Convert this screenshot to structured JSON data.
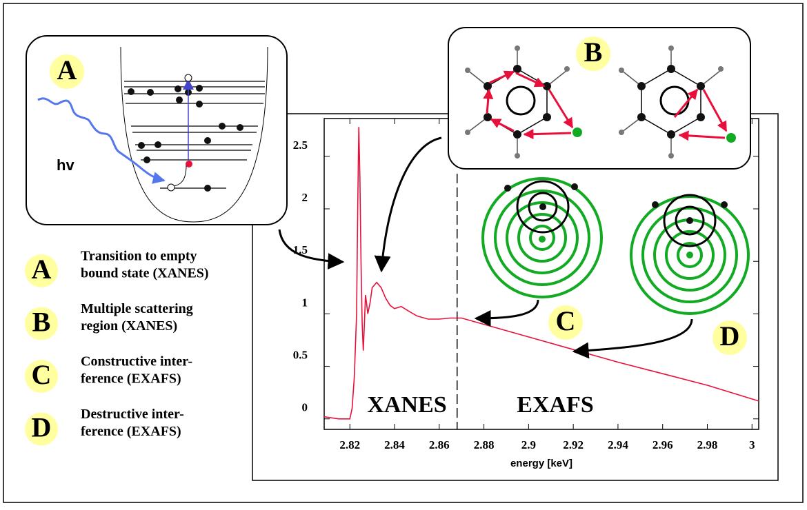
{
  "chart_data": {
    "type": "line",
    "xlabel": "energy [keV]",
    "color": "#e8103a",
    "x": [
      2.8085,
      2.815,
      2.82,
      2.821,
      2.822,
      2.823,
      2.8235,
      2.824,
      2.8245,
      2.825,
      2.8255,
      2.826,
      2.8265,
      2.827,
      2.8275,
      2.828,
      2.829,
      2.83,
      2.832,
      2.834,
      2.836,
      2.838,
      2.84,
      2.843,
      2.846,
      2.85,
      2.855,
      2.86,
      2.865,
      2.87,
      2.88,
      2.9,
      2.92,
      2.94,
      2.96,
      2.98,
      3.003
    ],
    "values": [
      0.02,
      0,
      0,
      0.1,
      0.4,
      1,
      2,
      2.78,
      2.3,
      1.5,
      0.9,
      0.65,
      0.9,
      1.18,
      1.1,
      1,
      1.1,
      1.25,
      1.3,
      1.25,
      1.15,
      1.08,
      1.05,
      1.07,
      1.03,
      0.98,
      0.95,
      0.95,
      0.96,
      0.96,
      0.9,
      0.78,
      0.66,
      0.54,
      0.43,
      0.32,
      0.17
    ],
    "xlim": [
      2.8085,
      3.003
    ],
    "ylim": [
      -0.1,
      2.86
    ],
    "xticks": [
      2.82,
      2.84,
      2.86,
      2.88,
      2.9,
      2.92,
      2.94,
      2.96,
      2.98,
      3
    ],
    "yticks": [
      0,
      0.5,
      1,
      1.5,
      2,
      2.5
    ],
    "divider": 2.868,
    "annotations": [
      "XANES",
      "EXAFS"
    ]
  },
  "panels": {
    "A": "A",
    "B": "B",
    "C": "C",
    "D": "D",
    "photon": "hv"
  },
  "legend": [
    {
      "marker": "A",
      "lines": [
        "Transition to empty",
        "bound state (XANES)"
      ]
    },
    {
      "marker": "B",
      "lines": [
        "Multiple scattering",
        "region (XANES)"
      ]
    },
    {
      "marker": "C",
      "lines": [
        "Constructive inter-",
        "ference (EXAFS)"
      ]
    },
    {
      "marker": "D",
      "lines": [
        "Destructive inter-",
        "ference (EXAFS)"
      ]
    }
  ]
}
